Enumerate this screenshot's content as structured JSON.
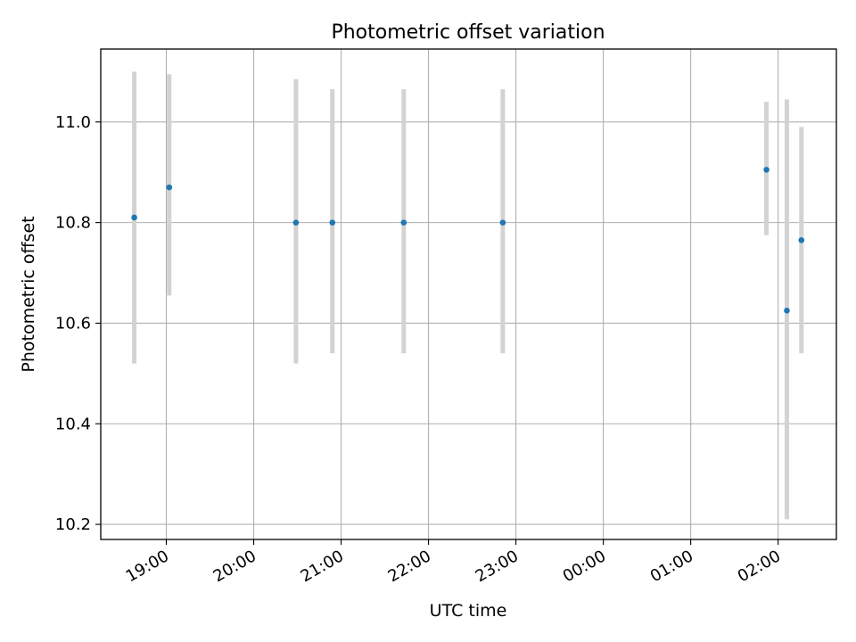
{
  "chart_data": {
    "type": "scatter",
    "title": "Photometric offset variation",
    "xlabel": "UTC time",
    "ylabel": "Photometric offset",
    "x_axis_type": "time",
    "x_ticks": [
      "19:00",
      "20:00",
      "21:00",
      "22:00",
      "23:00",
      "00:00",
      "01:00",
      "02:00"
    ],
    "y_ticks": [
      "10.2",
      "10.4",
      "10.6",
      "10.8",
      "11.0"
    ],
    "xlim": [
      "18:15",
      "02:40"
    ],
    "ylim": [
      10.17,
      11.145
    ],
    "grid": true,
    "marker_color": "#1f77b4",
    "errorbar_color": "#d3d3d3",
    "series": [
      {
        "points": [
          {
            "x": "18:38",
            "y": 10.81,
            "low": 10.52,
            "high": 11.1
          },
          {
            "x": "19:02",
            "y": 10.87,
            "low": 10.655,
            "high": 11.095
          },
          {
            "x": "20:29",
            "y": 10.8,
            "low": 10.52,
            "high": 11.085
          },
          {
            "x": "20:54",
            "y": 10.8,
            "low": 10.54,
            "high": 11.065
          },
          {
            "x": "21:43",
            "y": 10.8,
            "low": 10.54,
            "high": 11.065
          },
          {
            "x": "22:51",
            "y": 10.8,
            "low": 10.54,
            "high": 11.065
          },
          {
            "x": "01:52",
            "y": 10.905,
            "low": 10.775,
            "high": 11.04
          },
          {
            "x": "02:06",
            "y": 10.625,
            "low": 10.21,
            "high": 11.045
          },
          {
            "x": "02:16",
            "y": 10.765,
            "low": 10.54,
            "high": 10.99
          }
        ]
      }
    ]
  }
}
